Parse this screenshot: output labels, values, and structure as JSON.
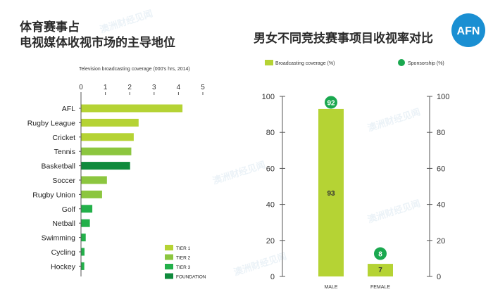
{
  "left_title_line1": "体育赛事占",
  "left_title_line2": "电视媒体收视市场的主导地位",
  "right_title": "男女不同竞技赛事项目收视率对比",
  "logo_text": "AFN",
  "watermark": "澳洲财经见闻",
  "colors": {
    "tier1": "#b5d334",
    "tier2": "#8cc63f",
    "tier3": "#23b04a",
    "foundation": "#0f8a3c",
    "broadcast_bar": "#b5d334",
    "sponsor_dot": "#1aa84f",
    "logo_bg": "#1a8fd2"
  },
  "chart_data": [
    {
      "type": "bar",
      "orientation": "horizontal",
      "title": "Television broadcasting coverage (000's hrs, 2014)",
      "xlim": [
        0,
        5
      ],
      "xticks": [
        0,
        1,
        2,
        3,
        4,
        5
      ],
      "categories": [
        "AFL",
        "Rugby League",
        "Cricket",
        "Tennis",
        "Basketball",
        "Soccer",
        "Rugby Union",
        "Golf",
        "Netball",
        "Swimming",
        "Cycling",
        "Hockey"
      ],
      "values": [
        4.15,
        2.35,
        2.15,
        2.05,
        2.0,
        1.05,
        0.85,
        0.45,
        0.35,
        0.18,
        0.13,
        0.12
      ],
      "tiers": [
        "tier1",
        "tier1",
        "tier1",
        "tier2",
        "foundation",
        "tier2",
        "tier2",
        "tier3",
        "tier3",
        "tier3",
        "tier3",
        "tier3"
      ],
      "legend": [
        {
          "key": "tier1",
          "label": "TIER 1"
        },
        {
          "key": "tier2",
          "label": "TIER 2"
        },
        {
          "key": "tier3",
          "label": "TIER 3"
        },
        {
          "key": "foundation",
          "label": "FOUNDATION"
        }
      ],
      "legend_position": "bottom-right",
      "grid": false
    },
    {
      "type": "bar",
      "title": "",
      "categories": [
        "MALE",
        "FEMALE"
      ],
      "series": [
        {
          "name": "Broadcasting coverage (%)",
          "values": [
            93,
            7
          ]
        },
        {
          "name": "Sponsorship (%)",
          "values": [
            92,
            8
          ]
        }
      ],
      "ylim": [
        0,
        100
      ],
      "yticks": [
        0,
        20,
        40,
        60,
        80,
        100
      ],
      "legend_position": "top",
      "grid": false
    }
  ]
}
